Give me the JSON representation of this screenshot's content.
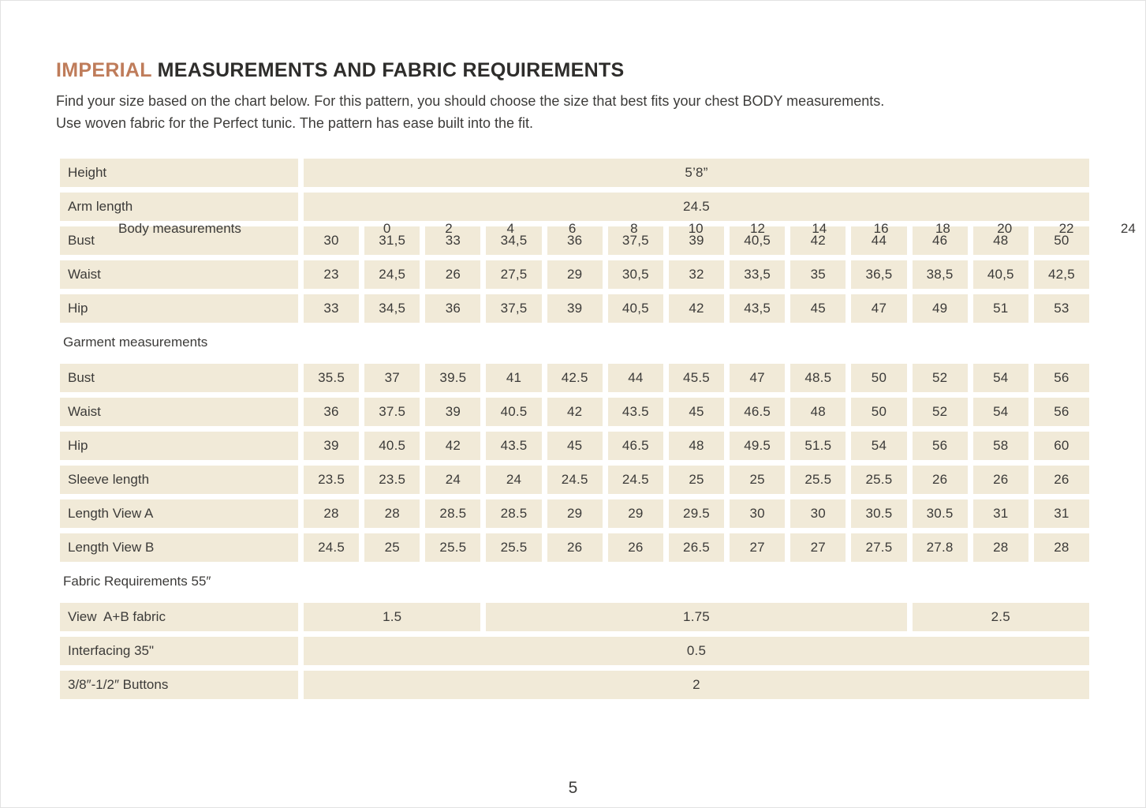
{
  "page": {
    "title_highlight": "IMPERIAL",
    "title_rest": " MEASUREMENTS AND FABRIC REQUIREMENTS",
    "intro_line1": "Find your size based on the chart below. For this pattern, you should choose the size that best fits your chest BODY measurements.",
    "intro_line2": "Use woven fabric for the Perfect tunic. The pattern has ease built into the fit.",
    "page_number": "5"
  },
  "colors": {
    "accent": "#bf7c5a",
    "cell_bg": "#f1ead8",
    "text": "#3c3b39"
  },
  "table": {
    "sizes": [
      "0",
      "2",
      "4",
      "6",
      "8",
      "10",
      "12",
      "14",
      "16",
      "18",
      "20",
      "22",
      "24"
    ],
    "rows": [
      {
        "type": "header",
        "label": "Body measurements"
      },
      {
        "type": "merged",
        "label": "Height",
        "value": "5’8”"
      },
      {
        "type": "merged",
        "label": "Arm length",
        "value": "24.5"
      },
      {
        "type": "values",
        "label": "Bust",
        "values": [
          "30",
          "31,5",
          "33",
          "34,5",
          "36",
          "37,5",
          "39",
          "40,5",
          "42",
          "44",
          "46",
          "48",
          "50"
        ]
      },
      {
        "type": "values",
        "label": "Waist",
        "values": [
          "23",
          "24,5",
          "26",
          "27,5",
          "29",
          "30,5",
          "32",
          "33,5",
          "35",
          "36,5",
          "38,5",
          "40,5",
          "42,5"
        ]
      },
      {
        "type": "values",
        "label": "Hip",
        "values": [
          "33",
          "34,5",
          "36",
          "37,5",
          "39",
          "40,5",
          "42",
          "43,5",
          "45",
          "47",
          "49",
          "51",
          "53"
        ]
      },
      {
        "type": "section",
        "label": "Garment measurements"
      },
      {
        "type": "values",
        "label": "Bust",
        "values": [
          "35.5",
          "37",
          "39.5",
          "41",
          "42.5",
          "44",
          "45.5",
          "47",
          "48.5",
          "50",
          "52",
          "54",
          "56"
        ]
      },
      {
        "type": "values",
        "label": "Waist",
        "values": [
          "36",
          "37.5",
          "39",
          "40.5",
          "42",
          "43.5",
          "45",
          "46.5",
          "48",
          "50",
          "52",
          "54",
          "56"
        ]
      },
      {
        "type": "values",
        "label": "Hip",
        "values": [
          "39",
          "40.5",
          "42",
          "43.5",
          "45",
          "46.5",
          "48",
          "49.5",
          "51.5",
          "54",
          "56",
          "58",
          "60"
        ]
      },
      {
        "type": "values",
        "label": "Sleeve length",
        "values": [
          "23.5",
          "23.5",
          "24",
          "24",
          "24.5",
          "24.5",
          "25",
          "25",
          "25.5",
          "25.5",
          "26",
          "26",
          "26"
        ]
      },
      {
        "type": "values",
        "label": "Length View A",
        "values": [
          "28",
          "28",
          "28.5",
          "28.5",
          "29",
          "29",
          "29.5",
          "30",
          "30",
          "30.5",
          "30.5",
          "31",
          "31"
        ]
      },
      {
        "type": "values",
        "label": "Length View B",
        "values": [
          "24.5",
          "25",
          "25.5",
          "25.5",
          "26",
          "26",
          "26.5",
          "27",
          "27",
          "27.5",
          "27.8",
          "28",
          "28"
        ]
      },
      {
        "type": "section",
        "label": "Fabric Requirements 55″"
      },
      {
        "type": "spans",
        "label": "View  A+B fabric",
        "spans": [
          {
            "span": 3,
            "value": "1.5"
          },
          {
            "span": 7,
            "value": "1.75"
          },
          {
            "span": 3,
            "value": "2.5"
          }
        ]
      },
      {
        "type": "merged",
        "label": "Interfacing 35\"",
        "value": "0.5"
      },
      {
        "type": "merged",
        "label": "3/8″-1/2″ Buttons",
        "value": "2"
      }
    ]
  }
}
